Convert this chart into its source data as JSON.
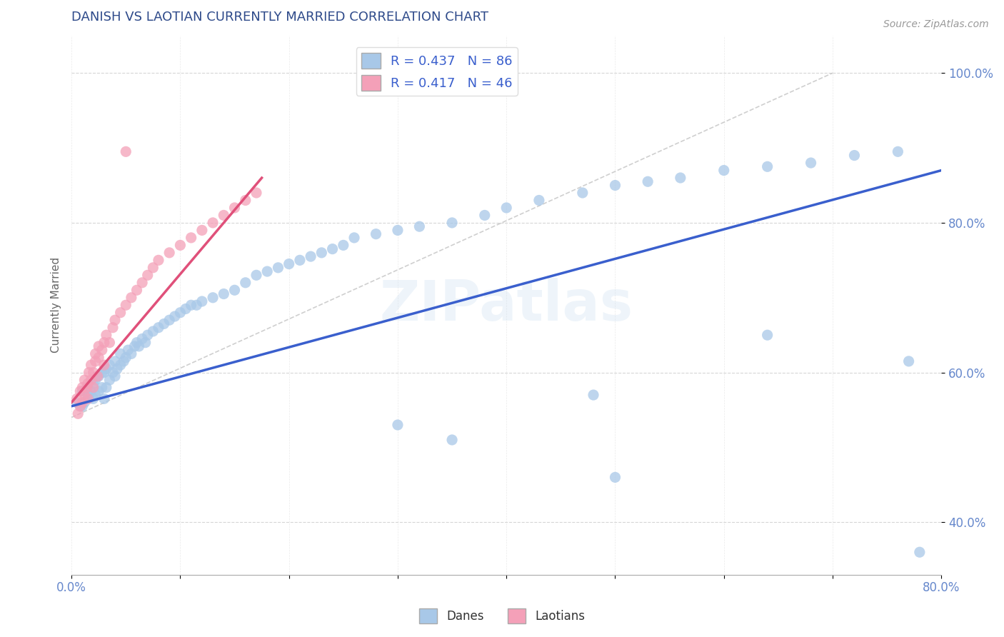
{
  "title": "DANISH VS LAOTIAN CURRENTLY MARRIED CORRELATION CHART",
  "source_text": "Source: ZipAtlas.com",
  "ylabel": "Currently Married",
  "xlim": [
    0.0,
    0.8
  ],
  "ylim": [
    0.33,
    1.05
  ],
  "xticks": [
    0.0,
    0.1,
    0.2,
    0.3,
    0.4,
    0.5,
    0.6,
    0.7,
    0.8
  ],
  "xtick_labels": [
    "0.0%",
    "",
    "",
    "",
    "",
    "",
    "",
    "",
    "80.0%"
  ],
  "yticks": [
    0.4,
    0.6,
    0.8,
    1.0
  ],
  "ytick_labels": [
    "40.0%",
    "60.0%",
    "80.0%",
    "100.0%"
  ],
  "danes_R": 0.437,
  "danes_N": 86,
  "laotians_R": 0.417,
  "laotians_N": 46,
  "danes_color": "#a8c8e8",
  "laotians_color": "#f4a0b8",
  "danes_line_color": "#3a5fcd",
  "laotians_line_color": "#e0507a",
  "title_color": "#2e4a8a",
  "axis_label_color": "#5577bb",
  "tick_color": "#6688cc",
  "background_color": "#ffffff",
  "grid_color": "#cccccc",
  "watermark": "ZIPatlas",
  "danes_x": [
    0.005,
    0.008,
    0.01,
    0.01,
    0.012,
    0.015,
    0.015,
    0.016,
    0.018,
    0.02,
    0.02,
    0.022,
    0.022,
    0.025,
    0.025,
    0.028,
    0.028,
    0.03,
    0.03,
    0.032,
    0.032,
    0.035,
    0.035,
    0.038,
    0.04,
    0.04,
    0.042,
    0.045,
    0.045,
    0.048,
    0.05,
    0.052,
    0.055,
    0.058,
    0.06,
    0.062,
    0.065,
    0.068,
    0.07,
    0.075,
    0.08,
    0.085,
    0.09,
    0.095,
    0.1,
    0.105,
    0.11,
    0.115,
    0.12,
    0.13,
    0.14,
    0.15,
    0.16,
    0.17,
    0.18,
    0.19,
    0.2,
    0.21,
    0.22,
    0.23,
    0.24,
    0.25,
    0.26,
    0.28,
    0.3,
    0.32,
    0.35,
    0.38,
    0.4,
    0.43,
    0.47,
    0.5,
    0.53,
    0.56,
    0.6,
    0.64,
    0.68,
    0.72,
    0.76,
    0.3,
    0.35,
    0.48,
    0.5,
    0.64,
    0.77,
    0.78
  ],
  "danes_y": [
    0.56,
    0.555,
    0.555,
    0.575,
    0.56,
    0.57,
    0.58,
    0.565,
    0.575,
    0.565,
    0.585,
    0.57,
    0.59,
    0.575,
    0.595,
    0.58,
    0.6,
    0.565,
    0.6,
    0.58,
    0.605,
    0.59,
    0.61,
    0.6,
    0.595,
    0.615,
    0.605,
    0.61,
    0.625,
    0.615,
    0.62,
    0.63,
    0.625,
    0.635,
    0.64,
    0.635,
    0.645,
    0.64,
    0.65,
    0.655,
    0.66,
    0.665,
    0.67,
    0.675,
    0.68,
    0.685,
    0.69,
    0.69,
    0.695,
    0.7,
    0.705,
    0.71,
    0.72,
    0.73,
    0.735,
    0.74,
    0.745,
    0.75,
    0.755,
    0.76,
    0.765,
    0.77,
    0.78,
    0.785,
    0.79,
    0.795,
    0.8,
    0.81,
    0.82,
    0.83,
    0.84,
    0.85,
    0.855,
    0.86,
    0.87,
    0.875,
    0.88,
    0.89,
    0.895,
    0.53,
    0.51,
    0.57,
    0.46,
    0.65,
    0.615,
    0.36
  ],
  "laotians_x": [
    0.005,
    0.006,
    0.008,
    0.008,
    0.01,
    0.01,
    0.012,
    0.012,
    0.014,
    0.015,
    0.015,
    0.016,
    0.018,
    0.018,
    0.02,
    0.02,
    0.022,
    0.022,
    0.024,
    0.025,
    0.025,
    0.028,
    0.03,
    0.03,
    0.032,
    0.035,
    0.038,
    0.04,
    0.045,
    0.05,
    0.055,
    0.06,
    0.065,
    0.07,
    0.075,
    0.08,
    0.09,
    0.1,
    0.11,
    0.12,
    0.13,
    0.14,
    0.15,
    0.16,
    0.17,
    0.05
  ],
  "laotians_y": [
    0.565,
    0.545,
    0.555,
    0.575,
    0.56,
    0.58,
    0.57,
    0.59,
    0.58,
    0.565,
    0.585,
    0.6,
    0.59,
    0.61,
    0.58,
    0.6,
    0.615,
    0.625,
    0.595,
    0.62,
    0.635,
    0.63,
    0.61,
    0.64,
    0.65,
    0.64,
    0.66,
    0.67,
    0.68,
    0.69,
    0.7,
    0.71,
    0.72,
    0.73,
    0.74,
    0.75,
    0.76,
    0.77,
    0.78,
    0.79,
    0.8,
    0.81,
    0.82,
    0.83,
    0.84,
    0.895
  ]
}
